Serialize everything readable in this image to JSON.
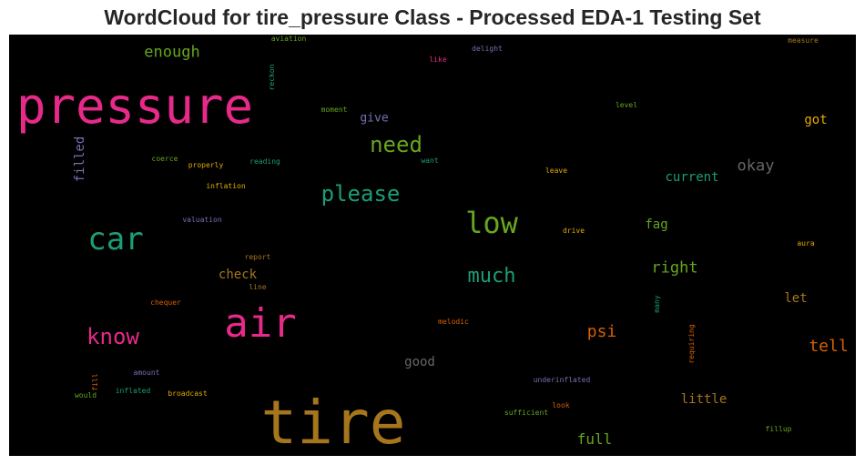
{
  "title": "WordCloud for tire_pressure Class - Processed EDA-1 Testing Set",
  "words": [
    {
      "text": "pressure",
      "color": "#e7298a"
    },
    {
      "text": "tire",
      "color": "#a6761d"
    },
    {
      "text": "air",
      "color": "#e7298a"
    },
    {
      "text": "car",
      "color": "#1b9e77"
    },
    {
      "text": "low",
      "color": "#66a61e"
    },
    {
      "text": "please",
      "color": "#1b9e77"
    },
    {
      "text": "need",
      "color": "#66a61e"
    },
    {
      "text": "much",
      "color": "#1b9e77"
    },
    {
      "text": "know",
      "color": "#e7298a"
    },
    {
      "text": "enough",
      "color": "#66a61e"
    },
    {
      "text": "okay",
      "color": "#666666"
    },
    {
      "text": "psi",
      "color": "#d95f02"
    },
    {
      "text": "tell",
      "color": "#d95f02"
    },
    {
      "text": "right",
      "color": "#66a61e"
    },
    {
      "text": "full",
      "color": "#66a61e"
    },
    {
      "text": "little",
      "color": "#a6761d"
    },
    {
      "text": "current",
      "color": "#1b9e77"
    },
    {
      "text": "got",
      "color": "#e6ab02"
    },
    {
      "text": "let",
      "color": "#a6761d"
    },
    {
      "text": "fag",
      "color": "#66a61e"
    },
    {
      "text": "check",
      "color": "#a6761d"
    },
    {
      "text": "good",
      "color": "#666666"
    },
    {
      "text": "give",
      "color": "#7570b3"
    },
    {
      "text": "filled",
      "color": "#7570b3"
    },
    {
      "text": "aviation",
      "color": "#66a61e"
    },
    {
      "text": "reckon",
      "color": "#1b9e77"
    },
    {
      "text": "like",
      "color": "#e7298a"
    },
    {
      "text": "delight",
      "color": "#7570b3"
    },
    {
      "text": "measure",
      "color": "#a6761d"
    },
    {
      "text": "moment",
      "color": "#66a61e"
    },
    {
      "text": "level",
      "color": "#66a61e"
    },
    {
      "text": "coerce",
      "color": "#66a61e"
    },
    {
      "text": "properly",
      "color": "#e6ab02"
    },
    {
      "text": "reading",
      "color": "#1b9e77"
    },
    {
      "text": "want",
      "color": "#1b9e77"
    },
    {
      "text": "leave",
      "color": "#e6ab02"
    },
    {
      "text": "inflation",
      "color": "#e6ab02"
    },
    {
      "text": "valuation",
      "color": "#7570b3"
    },
    {
      "text": "drive",
      "color": "#e6ab02"
    },
    {
      "text": "report",
      "color": "#a6761d"
    },
    {
      "text": "line",
      "color": "#a6761d"
    },
    {
      "text": "aura",
      "color": "#e6ab02"
    },
    {
      "text": "chequer",
      "color": "#d95f02"
    },
    {
      "text": "many",
      "color": "#1b9e77"
    },
    {
      "text": "melodic",
      "color": "#d95f02"
    },
    {
      "text": "requiring",
      "color": "#d95f02"
    },
    {
      "text": "amount",
      "color": "#7570b3"
    },
    {
      "text": "fill",
      "color": "#d95f02"
    },
    {
      "text": "would",
      "color": "#66a61e"
    },
    {
      "text": "inflated",
      "color": "#1b9e77"
    },
    {
      "text": "broadcast",
      "color": "#e6ab02"
    },
    {
      "text": "underinflated",
      "color": "#7570b3"
    },
    {
      "text": "look",
      "color": "#d95f02"
    },
    {
      "text": "sufficient",
      "color": "#66a61e"
    },
    {
      "text": "fillup",
      "color": "#66a61e"
    }
  ]
}
